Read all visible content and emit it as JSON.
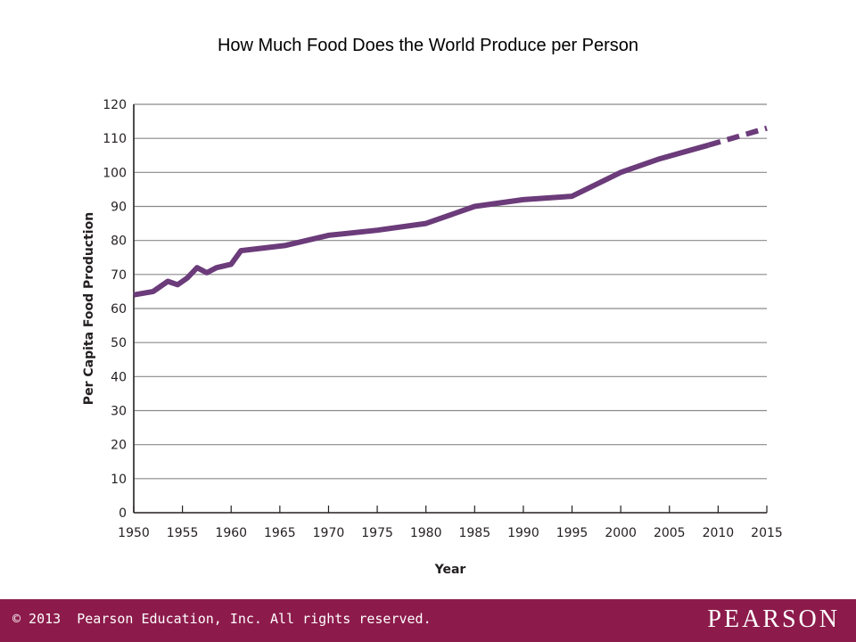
{
  "colors": {
    "line": "#6b3b7a",
    "grid": "#8a8a8a",
    "footer": "#8c1b4b"
  },
  "chart_data": {
    "type": "line",
    "title": "How Much Food Does the World Produce per Person",
    "xlabel": "Year",
    "ylabel": "Per Capita Food Production",
    "xlim": [
      1950,
      2015
    ],
    "ylim": [
      0,
      120
    ],
    "xticks": [
      "1950",
      "1955",
      "1960",
      "1965",
      "1970",
      "1975",
      "1980",
      "1985",
      "1990",
      "1995",
      "2000",
      "2005",
      "2010",
      "2015"
    ],
    "yticks": [
      "0",
      "10",
      "20",
      "30",
      "40",
      "50",
      "60",
      "70",
      "80",
      "90",
      "100",
      "110",
      "120"
    ],
    "grid": true,
    "series": [
      {
        "style": "solid",
        "x": [
          1950,
          1952,
          1953.5,
          1954.5,
          1955.5,
          1956.5,
          1957.5,
          1958.5,
          1960,
          1961,
          1965.5,
          1970,
          1975,
          1980,
          1985,
          1990,
          1995,
          2000,
          2004,
          2009
        ],
        "y": [
          64,
          65,
          68,
          67,
          69,
          72,
          70.5,
          72,
          73,
          77,
          78.5,
          81.5,
          83,
          85,
          90,
          92,
          93,
          100,
          104,
          108
        ]
      },
      {
        "style": "dashed",
        "x": [
          2009,
          2015
        ],
        "y": [
          108,
          113
        ]
      }
    ]
  },
  "footer": {
    "copyright": "© 2013  Pearson Education, Inc. All rights reserved.",
    "brand": "PEARSON"
  }
}
